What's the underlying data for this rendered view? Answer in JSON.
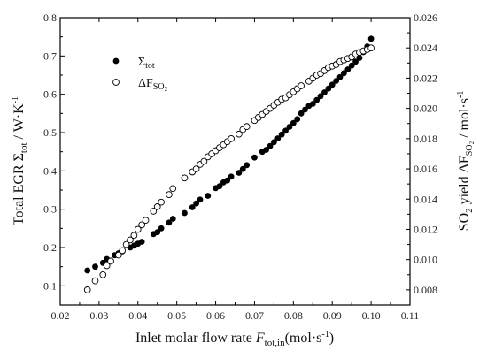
{
  "chart_data": {
    "type": "scatter",
    "xlabel": {
      "main": "Inlet molar flow rate ",
      "var": "F",
      "sub": "tot,in",
      "unit": "(mol·s",
      "sup": "-1",
      "close": ")"
    },
    "ylabel_left": {
      "main": "Total EGR Σ",
      "sub": "tot",
      "unit": " / W·K",
      "sup": "-1"
    },
    "ylabel_right": {
      "main": "SO",
      "sub1": "2",
      "mid": " yield ΔF",
      "sub2": "SO",
      "sub3": "2",
      "unit": " / mol·s",
      "sup": "-1"
    },
    "xlim": [
      0.02,
      0.11
    ],
    "ylim_left": [
      0.05,
      0.8
    ],
    "ylim_right": [
      0.007,
      0.026
    ],
    "x_ticks": [
      "0.02",
      "0.03",
      "0.04",
      "0.05",
      "0.06",
      "0.07",
      "0.08",
      "0.09",
      "0.10",
      "0.11"
    ],
    "y_left_ticks": [
      "0.1",
      "0.2",
      "0.3",
      "0.4",
      "0.5",
      "0.6",
      "0.7",
      "0.8"
    ],
    "y_right_ticks": [
      "0.008",
      "0.010",
      "0.012",
      "0.014",
      "0.016",
      "0.018",
      "0.020",
      "0.022",
      "0.024",
      "0.026"
    ],
    "legend": {
      "position": "top-left",
      "entries": [
        {
          "main": "Σ",
          "sub": "tot",
          "marker": "filled-circle"
        },
        {
          "main": "ΔF",
          "sub": "SO",
          "sub2": "2",
          "marker": "open-circle"
        }
      ]
    },
    "series": [
      {
        "name": "Σtot",
        "axis": "left",
        "marker": "filled",
        "x": [
          0.027,
          0.029,
          0.031,
          0.032,
          0.034,
          0.035,
          0.036,
          0.038,
          0.039,
          0.04,
          0.041,
          0.044,
          0.045,
          0.046,
          0.048,
          0.049,
          0.052,
          0.054,
          0.055,
          0.056,
          0.058,
          0.06,
          0.061,
          0.062,
          0.063,
          0.064,
          0.066,
          0.067,
          0.068,
          0.07,
          0.072,
          0.073,
          0.074,
          0.075,
          0.076,
          0.077,
          0.078,
          0.079,
          0.08,
          0.081,
          0.082,
          0.083,
          0.084,
          0.085,
          0.086,
          0.087,
          0.088,
          0.089,
          0.09,
          0.091,
          0.092,
          0.093,
          0.094,
          0.095,
          0.096,
          0.097,
          0.098,
          0.099,
          0.1
        ],
        "y": [
          0.14,
          0.15,
          0.16,
          0.17,
          0.18,
          0.185,
          0.19,
          0.2,
          0.205,
          0.21,
          0.215,
          0.235,
          0.24,
          0.25,
          0.265,
          0.275,
          0.29,
          0.305,
          0.315,
          0.325,
          0.335,
          0.355,
          0.36,
          0.37,
          0.375,
          0.385,
          0.395,
          0.405,
          0.415,
          0.435,
          0.45,
          0.455,
          0.465,
          0.475,
          0.485,
          0.495,
          0.505,
          0.515,
          0.525,
          0.535,
          0.55,
          0.56,
          0.57,
          0.575,
          0.585,
          0.595,
          0.605,
          0.615,
          0.625,
          0.635,
          0.645,
          0.655,
          0.665,
          0.675,
          0.685,
          0.695,
          0.71,
          0.725,
          0.745
        ]
      },
      {
        "name": "ΔFSO2",
        "axis": "right",
        "marker": "open",
        "x": [
          0.027,
          0.029,
          0.031,
          0.032,
          0.033,
          0.035,
          0.036,
          0.037,
          0.038,
          0.039,
          0.04,
          0.041,
          0.042,
          0.044,
          0.045,
          0.046,
          0.048,
          0.049,
          0.052,
          0.054,
          0.055,
          0.056,
          0.057,
          0.058,
          0.059,
          0.06,
          0.061,
          0.062,
          0.063,
          0.064,
          0.066,
          0.067,
          0.068,
          0.07,
          0.071,
          0.072,
          0.073,
          0.074,
          0.075,
          0.076,
          0.077,
          0.078,
          0.079,
          0.08,
          0.081,
          0.082,
          0.084,
          0.085,
          0.086,
          0.087,
          0.088,
          0.089,
          0.09,
          0.091,
          0.092,
          0.093,
          0.094,
          0.095,
          0.096,
          0.097,
          0.098,
          0.099,
          0.1
        ],
        "y": [
          0.008,
          0.0086,
          0.009,
          0.0096,
          0.0099,
          0.0103,
          0.0106,
          0.011,
          0.0113,
          0.0116,
          0.012,
          0.0123,
          0.0126,
          0.0132,
          0.0135,
          0.0138,
          0.0143,
          0.0147,
          0.0154,
          0.0158,
          0.016,
          0.0163,
          0.0165,
          0.0168,
          0.017,
          0.0172,
          0.0174,
          0.0176,
          0.0178,
          0.018,
          0.0183,
          0.0186,
          0.0188,
          0.0192,
          0.0194,
          0.0196,
          0.0198,
          0.02,
          0.0202,
          0.0204,
          0.0206,
          0.0207,
          0.0209,
          0.0211,
          0.0213,
          0.0215,
          0.0218,
          0.022,
          0.0222,
          0.0223,
          0.0225,
          0.0227,
          0.0228,
          0.0229,
          0.0231,
          0.0232,
          0.0233,
          0.0234,
          0.0236,
          0.0237,
          0.0238,
          0.0239,
          0.024
        ]
      }
    ]
  }
}
